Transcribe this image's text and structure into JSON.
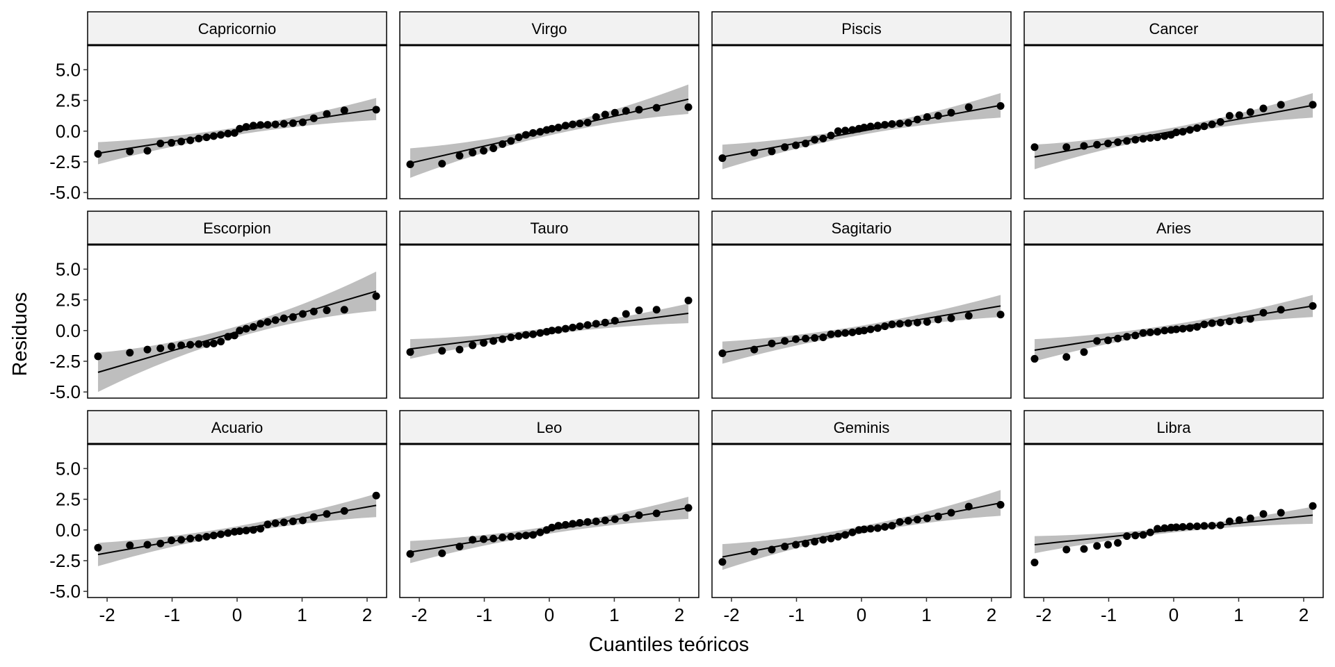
{
  "chart_data": {
    "type": "scatter",
    "subtype": "faceted-qq-plot",
    "title": "",
    "xlabel": "Cuantiles teóricos",
    "ylabel": "Residuos",
    "xlim": [
      -2.3,
      2.3
    ],
    "ylim": [
      -5.5,
      7.0
    ],
    "x_ticks": [
      -2,
      -1,
      0,
      1,
      2
    ],
    "x_tick_labels": [
      "-2",
      "-1",
      "0",
      "1",
      "2"
    ],
    "y_ticks": [
      5.0,
      2.5,
      0.0,
      -2.5,
      -5.0
    ],
    "y_tick_labels": [
      "5.0",
      "2.5",
      "0.0",
      "-2.5",
      "-5.0"
    ],
    "grid": false,
    "legend": "none",
    "colors": {
      "points": "#000000",
      "line": "#000000",
      "band": "#bebebe",
      "strip_fill": "#f2f2f2",
      "panel_border": "#000000"
    },
    "quantiles_x": [
      -2.14,
      -1.65,
      -1.38,
      -1.18,
      -1.01,
      -0.86,
      -0.72,
      -0.59,
      -0.47,
      -0.36,
      -0.25,
      -0.14,
      -0.04,
      0.04,
      0.14,
      0.25,
      0.36,
      0.47,
      0.59,
      0.72,
      0.86,
      1.01,
      1.18,
      1.38,
      1.65,
      2.14
    ],
    "panels": [
      {
        "name": "Capricornio",
        "line": [
          -1.8,
          1.8
        ],
        "band_half": [
          0.9,
          0.3,
          0.9
        ],
        "y": [
          -1.85,
          -1.65,
          -1.6,
          -1.0,
          -0.95,
          -0.85,
          -0.75,
          -0.6,
          -0.5,
          -0.4,
          -0.3,
          -0.2,
          -0.15,
          0.2,
          0.35,
          0.45,
          0.5,
          0.52,
          0.55,
          0.6,
          0.65,
          0.72,
          1.05,
          1.4,
          1.7,
          1.75
        ]
      },
      {
        "name": "Virgo",
        "line": [
          -2.6,
          2.6
        ],
        "band_half": [
          1.2,
          0.35,
          1.2
        ],
        "y": [
          -2.7,
          -2.65,
          -2.0,
          -1.75,
          -1.6,
          -1.4,
          -1.05,
          -0.8,
          -0.5,
          -0.3,
          -0.15,
          -0.05,
          0.1,
          0.2,
          0.3,
          0.45,
          0.55,
          0.62,
          0.7,
          1.15,
          1.35,
          1.5,
          1.65,
          1.75,
          1.9,
          1.95
        ]
      },
      {
        "name": "Piscis",
        "line": [
          -2.1,
          2.1
        ],
        "band_half": [
          1.0,
          0.3,
          1.0
        ],
        "y": [
          -2.2,
          -1.75,
          -1.65,
          -1.3,
          -1.15,
          -1.0,
          -0.7,
          -0.6,
          -0.35,
          0.0,
          0.05,
          0.1,
          0.2,
          0.3,
          0.38,
          0.45,
          0.52,
          0.58,
          0.62,
          0.68,
          0.95,
          1.15,
          1.25,
          1.5,
          1.95,
          2.05
        ]
      },
      {
        "name": "Cancer",
        "line": [
          -2.1,
          2.1
        ],
        "band_half": [
          1.0,
          0.3,
          1.0
        ],
        "y": [
          -1.3,
          -1.3,
          -1.2,
          -1.1,
          -1.0,
          -0.9,
          -0.8,
          -0.7,
          -0.62,
          -0.55,
          -0.5,
          -0.4,
          -0.3,
          -0.1,
          -0.05,
          0.1,
          0.25,
          0.4,
          0.55,
          0.75,
          1.25,
          1.3,
          1.55,
          1.85,
          2.15,
          2.15
        ]
      },
      {
        "name": "Escorpion",
        "line": [
          -3.4,
          3.2
        ],
        "band_half": [
          1.6,
          0.45,
          1.6
        ],
        "y": [
          -2.1,
          -1.8,
          -1.55,
          -1.45,
          -1.3,
          -1.2,
          -1.15,
          -1.1,
          -1.1,
          -1.05,
          -0.9,
          -0.5,
          -0.4,
          0.0,
          0.15,
          0.3,
          0.55,
          0.7,
          0.85,
          1.0,
          1.1,
          1.35,
          1.55,
          1.65,
          1.7,
          2.8
        ]
      },
      {
        "name": "Tauro",
        "line": [
          -1.5,
          1.4
        ],
        "band_half": [
          0.8,
          0.25,
          0.8
        ],
        "y": [
          -1.75,
          -1.65,
          -1.55,
          -1.2,
          -1.0,
          -0.85,
          -0.7,
          -0.55,
          -0.45,
          -0.35,
          -0.3,
          -0.2,
          -0.1,
          0.0,
          0.05,
          0.15,
          0.25,
          0.35,
          0.45,
          0.55,
          0.65,
          0.8,
          1.35,
          1.65,
          1.7,
          2.45
        ]
      },
      {
        "name": "Sagitario",
        "line": [
          -1.8,
          2.0
        ],
        "band_half": [
          0.9,
          0.3,
          0.9
        ],
        "y": [
          -1.85,
          -1.55,
          -1.05,
          -0.85,
          -0.7,
          -0.65,
          -0.6,
          -0.55,
          -0.3,
          -0.25,
          -0.2,
          -0.15,
          -0.05,
          0.0,
          0.1,
          0.2,
          0.35,
          0.5,
          0.55,
          0.6,
          0.65,
          0.7,
          0.9,
          1.0,
          1.2,
          1.3
        ]
      },
      {
        "name": "Aries",
        "line": [
          -1.6,
          2.0
        ],
        "band_half": [
          0.9,
          0.3,
          0.9
        ],
        "y": [
          -2.3,
          -2.15,
          -1.75,
          -0.85,
          -0.8,
          -0.65,
          -0.5,
          -0.4,
          -0.2,
          -0.15,
          -0.1,
          0.0,
          0.05,
          0.1,
          0.15,
          0.2,
          0.3,
          0.5,
          0.6,
          0.65,
          0.75,
          0.85,
          0.95,
          1.45,
          1.7,
          2.0
        ]
      },
      {
        "name": "Acuario",
        "line": [
          -2.0,
          2.0
        ],
        "band_half": [
          0.95,
          0.3,
          0.95
        ],
        "y": [
          -1.45,
          -1.25,
          -1.2,
          -1.1,
          -0.85,
          -0.8,
          -0.7,
          -0.65,
          -0.55,
          -0.45,
          -0.35,
          -0.25,
          -0.15,
          -0.1,
          -0.05,
          0.0,
          0.1,
          0.45,
          0.55,
          0.62,
          0.7,
          0.78,
          1.05,
          1.3,
          1.55,
          2.8
        ]
      },
      {
        "name": "Leo",
        "line": [
          -1.8,
          1.8
        ],
        "band_half": [
          0.9,
          0.3,
          0.9
        ],
        "y": [
          -1.95,
          -1.9,
          -1.35,
          -0.8,
          -0.75,
          -0.7,
          -0.6,
          -0.55,
          -0.5,
          -0.45,
          -0.4,
          -0.2,
          0.0,
          0.2,
          0.35,
          0.42,
          0.5,
          0.58,
          0.65,
          0.7,
          0.78,
          0.88,
          1.0,
          1.2,
          1.35,
          1.8
        ]
      },
      {
        "name": "Geminis",
        "line": [
          -2.2,
          2.2
        ],
        "band_half": [
          1.05,
          0.3,
          1.05
        ],
        "y": [
          -2.6,
          -1.75,
          -1.6,
          -1.35,
          -1.2,
          -1.1,
          -0.95,
          -0.8,
          -0.7,
          -0.55,
          -0.4,
          -0.2,
          0.0,
          0.05,
          0.1,
          0.15,
          0.25,
          0.35,
          0.65,
          0.75,
          0.85,
          0.95,
          1.1,
          1.4,
          1.9,
          2.05
        ]
      },
      {
        "name": "Libra",
        "line": [
          -1.2,
          1.2
        ],
        "band_half": [
          0.7,
          0.2,
          0.7
        ],
        "y": [
          -2.65,
          -1.6,
          -1.55,
          -1.3,
          -1.2,
          -1.05,
          -0.5,
          -0.45,
          -0.4,
          -0.2,
          0.1,
          0.15,
          0.2,
          0.22,
          0.25,
          0.28,
          0.3,
          0.33,
          0.35,
          0.38,
          0.7,
          0.8,
          0.95,
          1.3,
          1.4,
          1.95
        ]
      }
    ]
  }
}
